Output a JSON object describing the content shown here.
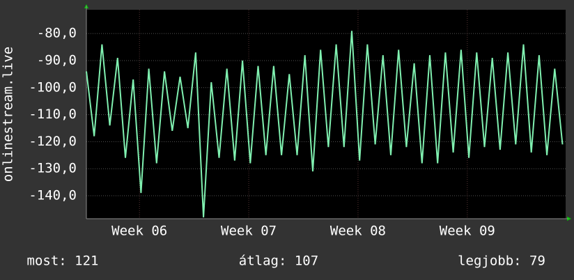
{
  "chart_data": {
    "type": "line",
    "y_label": "onlinestream.live",
    "x": [
      0,
      0.5,
      1,
      1.5,
      2,
      2.5,
      3,
      3.5,
      4,
      4.5,
      5,
      5.5,
      6,
      6.5,
      7,
      7.5,
      8,
      8.5,
      9,
      9.5,
      10,
      10.5,
      11,
      11.5,
      12,
      12.5,
      13,
      13.5,
      14,
      14.5,
      15,
      15.5,
      16,
      16.5,
      17,
      17.5,
      18,
      18.5,
      19,
      19.5,
      20,
      20.5,
      21,
      21.5,
      22,
      22.5,
      23,
      23.5,
      24,
      24.5,
      25,
      25.5,
      26,
      26.5,
      27,
      27.5,
      28,
      28.5,
      29,
      29.5,
      30,
      30.5
    ],
    "values": [
      -94,
      -118,
      -84,
      -114,
      -89,
      -126,
      -97,
      -139,
      -93,
      -128,
      -94,
      -116,
      -96,
      -115,
      -87,
      -148,
      -98,
      -126,
      -93,
      -127,
      -90,
      -128,
      -92,
      -125,
      -92,
      -125,
      -95,
      -125,
      -88,
      -131,
      -86,
      -122,
      -84,
      -122,
      -79,
      -127,
      -84,
      -121,
      -88,
      -125,
      -86,
      -122,
      -91,
      -128,
      -88,
      -128,
      -87,
      -124,
      -86,
      -126,
      -87,
      -122,
      -89,
      -123,
      -87,
      -121,
      -84,
      -124,
      -88,
      -125,
      -93,
      -121
    ],
    "color": "#80f0b0",
    "xlim": [
      0,
      30.7
    ],
    "xticks": [
      {
        "value": 3.4,
        "label": "Week 06"
      },
      {
        "value": 10.4,
        "label": "Week 07"
      },
      {
        "value": 17.4,
        "label": "Week 08"
      },
      {
        "value": 24.4,
        "label": "Week 09"
      }
    ],
    "ylim": [
      -148.5,
      -71.2
    ],
    "yticks": [
      {
        "value": -80,
        "label": "-80,0"
      },
      {
        "value": -90,
        "label": "-90,0"
      },
      {
        "value": -100,
        "label": "-100,0"
      },
      {
        "value": -110,
        "label": "-110,0"
      },
      {
        "value": -120,
        "label": "-120,0"
      },
      {
        "value": -130,
        "label": "-130,0"
      },
      {
        "value": -140,
        "label": "-140,0"
      }
    ],
    "grid": true,
    "footer": [
      "most: 121",
      "átlag: 107",
      "legjobb: 79"
    ]
  }
}
